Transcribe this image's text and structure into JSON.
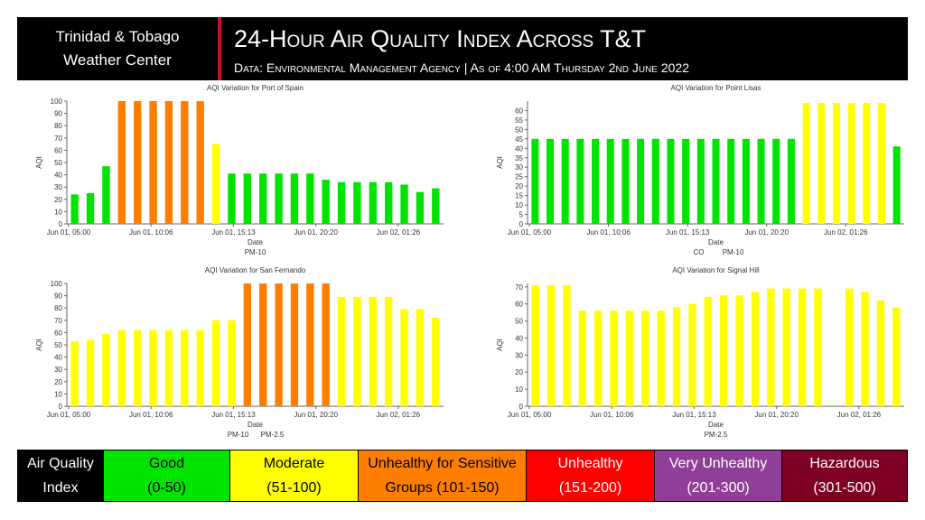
{
  "header": {
    "brand_line1": "Trinidad & Tobago",
    "brand_line2": "Weather Center",
    "title": "24-Hour Air Quality Index Across T&T",
    "subtitle": "Data: Environmental Management Agency | As of 4:00 AM Thursday 2nd June 2022"
  },
  "colors": {
    "good": "#00e400",
    "moderate": "#ffff00",
    "usg": "#ff7e00",
    "unhealthy": "#ff0000",
    "very_unhealthy": "#8f3f97",
    "hazardous": "#7e0023"
  },
  "legend": {
    "items": [
      {
        "line1": "Air Quality",
        "line2": "Index",
        "bg": "#000000",
        "fg": "#ffffff"
      },
      {
        "line1": "Good",
        "line2": "(0-50)",
        "bg": "#00e400",
        "fg": "#000000"
      },
      {
        "line1": "Moderate",
        "line2": "(51-100)",
        "bg": "#ffff00",
        "fg": "#000000"
      },
      {
        "line1": "Unhealthy for Sensitive",
        "line2": "Groups (101-150)",
        "bg": "#ff7e00",
        "fg": "#000000"
      },
      {
        "line1": "Unhealthy",
        "line2": "(151-200)",
        "bg": "#ff0000",
        "fg": "#ffffff"
      },
      {
        "line1": "Very Unhealthy",
        "line2": "(201-300)",
        "bg": "#8f3f97",
        "fg": "#ffffff"
      },
      {
        "line1": "Hazardous",
        "line2": "(301-500)",
        "bg": "#7e0023",
        "fg": "#ffffff"
      }
    ]
  },
  "chart_data": [
    {
      "type": "bar",
      "title": "AQI Variation for Port of Spain",
      "xlabel": "Date",
      "ylabel": "AQI",
      "ylim": [
        0,
        100
      ],
      "yticks": [
        0,
        10,
        20,
        30,
        40,
        50,
        60,
        70,
        80,
        90,
        100
      ],
      "xticks": [
        "Jun 01, 05:00",
        "Jun 01, 10:06",
        "Jun 01, 15:13",
        "Jun 01, 20:20",
        "Jun 02, 01:26"
      ],
      "pollutants": [
        "PM-10"
      ],
      "values": [
        24,
        25,
        47,
        100,
        100,
        100,
        100,
        100,
        100,
        65,
        41,
        41,
        41,
        41,
        41,
        41,
        36,
        34,
        34,
        34,
        34,
        32,
        26,
        29
      ],
      "bar_colors": [
        "#00e400",
        "#00e400",
        "#00e400",
        "#ff7e00",
        "#ff7e00",
        "#ff7e00",
        "#ff7e00",
        "#ff7e00",
        "#ff7e00",
        "#ffff00",
        "#00e400",
        "#00e400",
        "#00e400",
        "#00e400",
        "#00e400",
        "#00e400",
        "#00e400",
        "#00e400",
        "#00e400",
        "#00e400",
        "#00e400",
        "#00e400",
        "#00e400",
        "#00e400"
      ],
      "grid": false
    },
    {
      "type": "bar",
      "title": "AQI Variation for Point Lisas",
      "xlabel": "Date",
      "ylabel": "AQI",
      "ylim": [
        0,
        65
      ],
      "yticks": [
        0,
        5,
        10,
        15,
        20,
        25,
        30,
        35,
        40,
        45,
        50,
        55,
        60
      ],
      "xticks": [
        "Jun 01, 05:00",
        "Jun 01, 10:06",
        "Jun 01, 15:13",
        "Jun 01, 20:20",
        "Jun 02, 01:26"
      ],
      "pollutants": [
        "CO",
        "PM-10"
      ],
      "values": [
        45,
        45,
        45,
        45,
        45,
        45,
        45,
        45,
        45,
        45,
        45,
        45,
        45,
        45,
        45,
        45,
        45,
        45,
        64,
        64,
        64,
        64,
        64,
        64,
        41
      ],
      "bar_colors": [
        "#00e400",
        "#00e400",
        "#00e400",
        "#00e400",
        "#00e400",
        "#00e400",
        "#00e400",
        "#00e400",
        "#00e400",
        "#00e400",
        "#00e400",
        "#00e400",
        "#00e400",
        "#00e400",
        "#00e400",
        "#00e400",
        "#00e400",
        "#00e400",
        "#ffff00",
        "#ffff00",
        "#ffff00",
        "#ffff00",
        "#ffff00",
        "#ffff00",
        "#00e400"
      ],
      "grid": false
    },
    {
      "type": "bar",
      "title": "AQI Variation for San Fernando",
      "xlabel": "Date",
      "ylabel": "AQI",
      "ylim": [
        0,
        100
      ],
      "yticks": [
        0,
        10,
        20,
        30,
        40,
        50,
        60,
        70,
        80,
        90,
        100
      ],
      "xticks": [
        "Jun 01, 05:00",
        "Jun 01, 10:06",
        "Jun 01, 15:13",
        "Jun 01, 20:20",
        "Jun 02, 01:26"
      ],
      "pollutants": [
        "PM-10",
        "PM-2.5"
      ],
      "values": [
        53,
        54,
        59,
        62,
        62,
        62,
        62,
        62,
        62,
        70,
        70,
        100,
        100,
        100,
        100,
        100,
        100,
        89,
        89,
        89,
        89,
        79,
        79,
        72
      ],
      "bar_colors": [
        "#ffff00",
        "#ffff00",
        "#ffff00",
        "#ffff00",
        "#ffff00",
        "#ffff00",
        "#ffff00",
        "#ffff00",
        "#ffff00",
        "#ffff00",
        "#ffff00",
        "#ff7e00",
        "#ff7e00",
        "#ff7e00",
        "#ff7e00",
        "#ff7e00",
        "#ff7e00",
        "#ffff00",
        "#ffff00",
        "#ffff00",
        "#ffff00",
        "#ffff00",
        "#ffff00",
        "#ffff00"
      ],
      "grid": false
    },
    {
      "type": "bar",
      "title": "AQI Variation for Signal Hill",
      "xlabel": "Date",
      "ylabel": "AQI",
      "ylim": [
        0,
        72
      ],
      "yticks": [
        0,
        10,
        20,
        30,
        40,
        50,
        60,
        70
      ],
      "xticks": [
        "Jun 01, 05:00",
        "Jun 01, 10:06",
        "Jun 01, 15:13",
        "Jun 01, 20:20",
        "Jun 02, 01:26"
      ],
      "pollutants": [
        "PM-2.5"
      ],
      "values": [
        71,
        71,
        71,
        56,
        56,
        56,
        56,
        56,
        56,
        58,
        60,
        64,
        65,
        65,
        67,
        69,
        69,
        69,
        69,
        0,
        69,
        67,
        62,
        58
      ],
      "bar_colors": [
        "#ffff00",
        "#ffff00",
        "#ffff00",
        "#ffff00",
        "#ffff00",
        "#ffff00",
        "#ffff00",
        "#ffff00",
        "#ffff00",
        "#ffff00",
        "#ffff00",
        "#ffff00",
        "#ffff00",
        "#ffff00",
        "#ffff00",
        "#ffff00",
        "#ffff00",
        "#ffff00",
        "#ffff00",
        "#ffff00",
        "#ffff00",
        "#ffff00",
        "#ffff00",
        "#ffff00"
      ],
      "grid": false
    }
  ]
}
